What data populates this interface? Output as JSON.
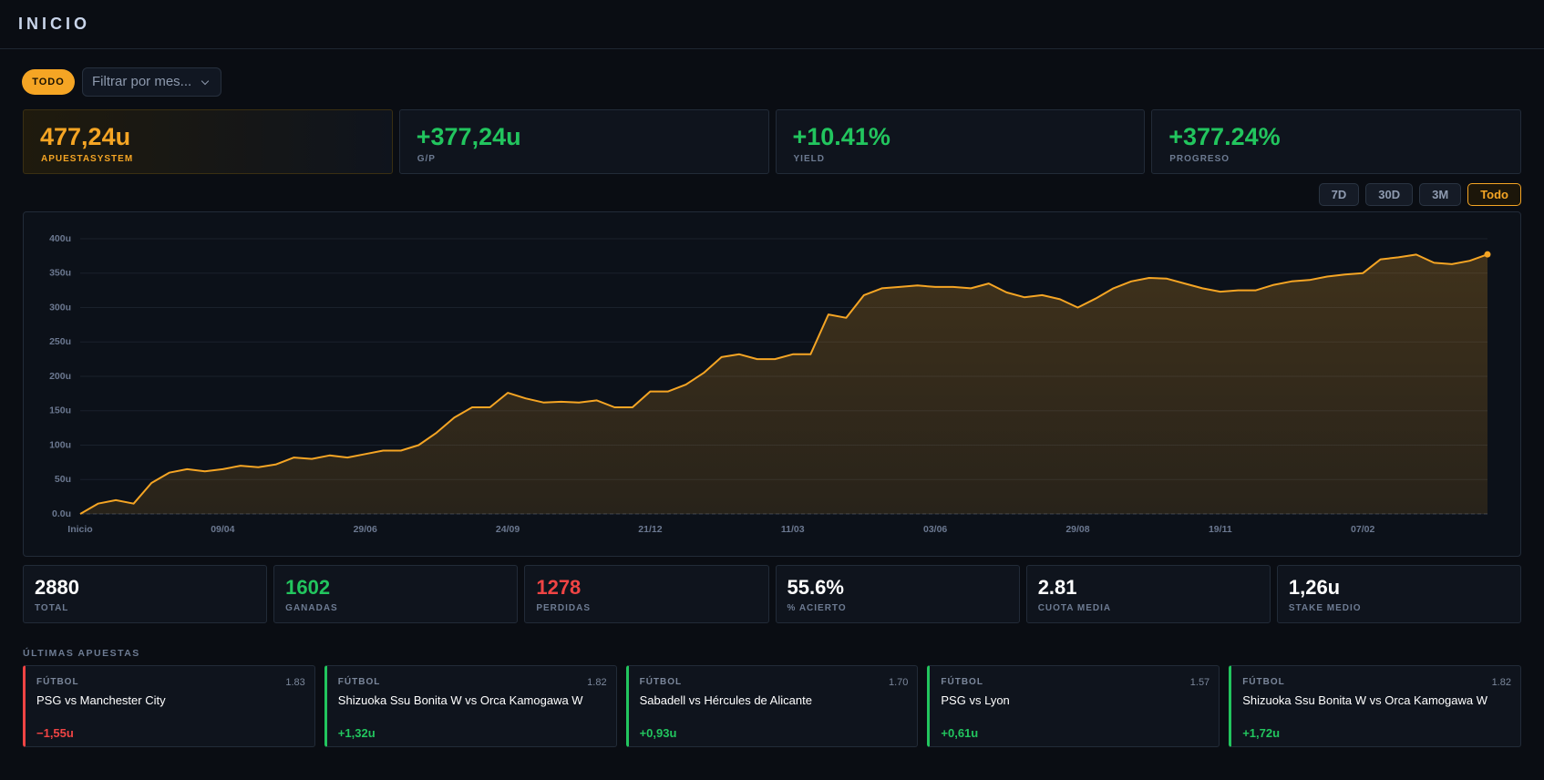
{
  "header": {
    "title": "INICIO"
  },
  "filters": {
    "all": "TODO",
    "month_placeholder": "Filtrar por mes..."
  },
  "summary": [
    {
      "value": "477,24u",
      "label": "APUESTASYSTEM"
    },
    {
      "value": "+377,24u",
      "label": "G/P"
    },
    {
      "value": "+10.41%",
      "label": "YIELD"
    },
    {
      "value": "+377.24%",
      "label": "PROGRESO"
    }
  ],
  "ranges": [
    "7D",
    "30D",
    "3M",
    "Todo"
  ],
  "chart_data": {
    "type": "line",
    "color": "#f5a524",
    "grid": true,
    "values": [
      0,
      15,
      20,
      15,
      45,
      60,
      65,
      62,
      65,
      70,
      68,
      72,
      82,
      80,
      85,
      82,
      87,
      92,
      92,
      100,
      118,
      140,
      155,
      155,
      176,
      168,
      162,
      163,
      162,
      165,
      155,
      155,
      178,
      178,
      188,
      205,
      228,
      232,
      225,
      225,
      232,
      232,
      290,
      285,
      318,
      328,
      330,
      332,
      330,
      330,
      328,
      335,
      322,
      315,
      318,
      312,
      300,
      313,
      328,
      338,
      343,
      342,
      335,
      328,
      323,
      325,
      325,
      333,
      338,
      340,
      345,
      348,
      350,
      370,
      373,
      377,
      365,
      363,
      368,
      377.24
    ],
    "xlim": [
      0,
      79
    ],
    "xticks": [
      {
        "value": 0,
        "label": "Inicio"
      },
      {
        "value": 8,
        "label": "09/04"
      },
      {
        "value": 16,
        "label": "29/06"
      },
      {
        "value": 24,
        "label": "24/09"
      },
      {
        "value": 32,
        "label": "21/12"
      },
      {
        "value": 40,
        "label": "11/03"
      },
      {
        "value": 48,
        "label": "03/06"
      },
      {
        "value": 56,
        "label": "29/08"
      },
      {
        "value": 64,
        "label": "19/11"
      },
      {
        "value": 72,
        "label": "07/02"
      }
    ],
    "ylim": [
      0,
      400
    ],
    "yticks": [
      {
        "value": 0,
        "label": "0.0u"
      },
      {
        "value": 50,
        "label": "50u"
      },
      {
        "value": 100,
        "label": "100u"
      },
      {
        "value": 150,
        "label": "150u"
      },
      {
        "value": 200,
        "label": "200u"
      },
      {
        "value": 250,
        "label": "250u"
      },
      {
        "value": 300,
        "label": "300u"
      },
      {
        "value": 350,
        "label": "350u"
      },
      {
        "value": 400,
        "label": "400u"
      }
    ]
  },
  "stats": [
    {
      "value": "2880",
      "label": "TOTAL"
    },
    {
      "value": "1602",
      "label": "GANADAS"
    },
    {
      "value": "1278",
      "label": "PERDIDAS"
    },
    {
      "value": "55.6%",
      "label": "% ACIERTO"
    },
    {
      "value": "2.81",
      "label": "CUOTA MEDIA"
    },
    {
      "value": "1,26u",
      "label": "STAKE MEDIO"
    }
  ],
  "recent": {
    "title": "ÚLTIMAS APUESTAS",
    "bets": [
      {
        "sport": "FÚTBOL",
        "odds": "1.83",
        "match": "PSG vs Manchester City",
        "result": "−1,55u"
      },
      {
        "sport": "FÚTBOL",
        "odds": "1.82",
        "match": "Shizuoka Ssu Bonita W vs Orca Kamogawa W",
        "result": "+1,32u"
      },
      {
        "sport": "FÚTBOL",
        "odds": "1.70",
        "match": "Sabadell vs Hércules de Alicante",
        "result": "+0,93u"
      },
      {
        "sport": "FÚTBOL",
        "odds": "1.57",
        "match": "PSG vs Lyon",
        "result": "+0,61u"
      },
      {
        "sport": "FÚTBOL",
        "odds": "1.82",
        "match": "Shizuoka Ssu Bonita W vs Orca Kamogawa W",
        "result": "+1,72u"
      }
    ]
  }
}
